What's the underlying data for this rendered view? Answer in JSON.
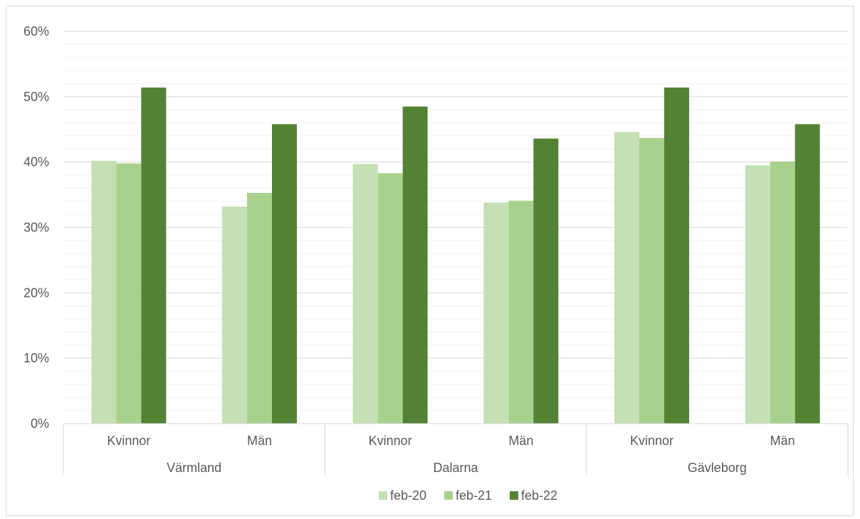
{
  "chart_data": {
    "type": "bar",
    "ylim": [
      0,
      0.6
    ],
    "y_ticks": [
      "0%",
      "10%",
      "20%",
      "30%",
      "40%",
      "50%",
      "60%"
    ],
    "y_tick_values": [
      0,
      0.1,
      0.2,
      0.3,
      0.4,
      0.5,
      0.6
    ],
    "grid": "major and minor horizontal gridlines",
    "legend_position": "bottom",
    "groups": [
      "Värmland",
      "Dalarna",
      "Gävleborg"
    ],
    "categories": [
      "Kvinnor",
      "Män",
      "Kvinnor",
      "Män",
      "Kvinnor",
      "Män"
    ],
    "series": [
      {
        "name": "feb-20",
        "color": "#c5e0b4",
        "values": [
          0.402,
          0.332,
          0.397,
          0.338,
          0.446,
          0.395
        ]
      },
      {
        "name": "feb-21",
        "color": "#a9d18e",
        "values": [
          0.398,
          0.353,
          0.383,
          0.341,
          0.437,
          0.401
        ]
      },
      {
        "name": "feb-22",
        "color": "#548235",
        "values": [
          0.514,
          0.458,
          0.485,
          0.436,
          0.514,
          0.458
        ]
      }
    ]
  }
}
